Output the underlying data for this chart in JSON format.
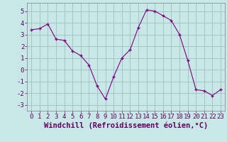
{
  "x": [
    0,
    1,
    2,
    3,
    4,
    5,
    6,
    7,
    8,
    9,
    10,
    11,
    12,
    13,
    14,
    15,
    16,
    17,
    18,
    19,
    20,
    21,
    22,
    23
  ],
  "y": [
    3.4,
    3.5,
    3.9,
    2.6,
    2.5,
    1.6,
    1.2,
    0.4,
    -1.4,
    -2.5,
    -0.6,
    1.0,
    1.7,
    3.6,
    5.1,
    5.0,
    4.6,
    4.2,
    3.0,
    0.8,
    -1.7,
    -1.8,
    -2.2,
    -1.7
  ],
  "line_color": "#800080",
  "marker": "+",
  "marker_color": "#800080",
  "bg_color": "#c8e8e8",
  "grid_color": "#a0c0c0",
  "xlabel": "Windchill (Refroidissement éolien,°C)",
  "xlim": [
    -0.5,
    23.5
  ],
  "ylim": [
    -3.5,
    5.7
  ],
  "yticks": [
    -3,
    -2,
    -1,
    0,
    1,
    2,
    3,
    4,
    5
  ],
  "xticks": [
    0,
    1,
    2,
    3,
    4,
    5,
    6,
    7,
    8,
    9,
    10,
    11,
    12,
    13,
    14,
    15,
    16,
    17,
    18,
    19,
    20,
    21,
    22,
    23
  ],
  "xlabel_fontsize": 7.5,
  "tick_fontsize": 6.5,
  "marker_size": 3.5,
  "line_width": 0.8
}
